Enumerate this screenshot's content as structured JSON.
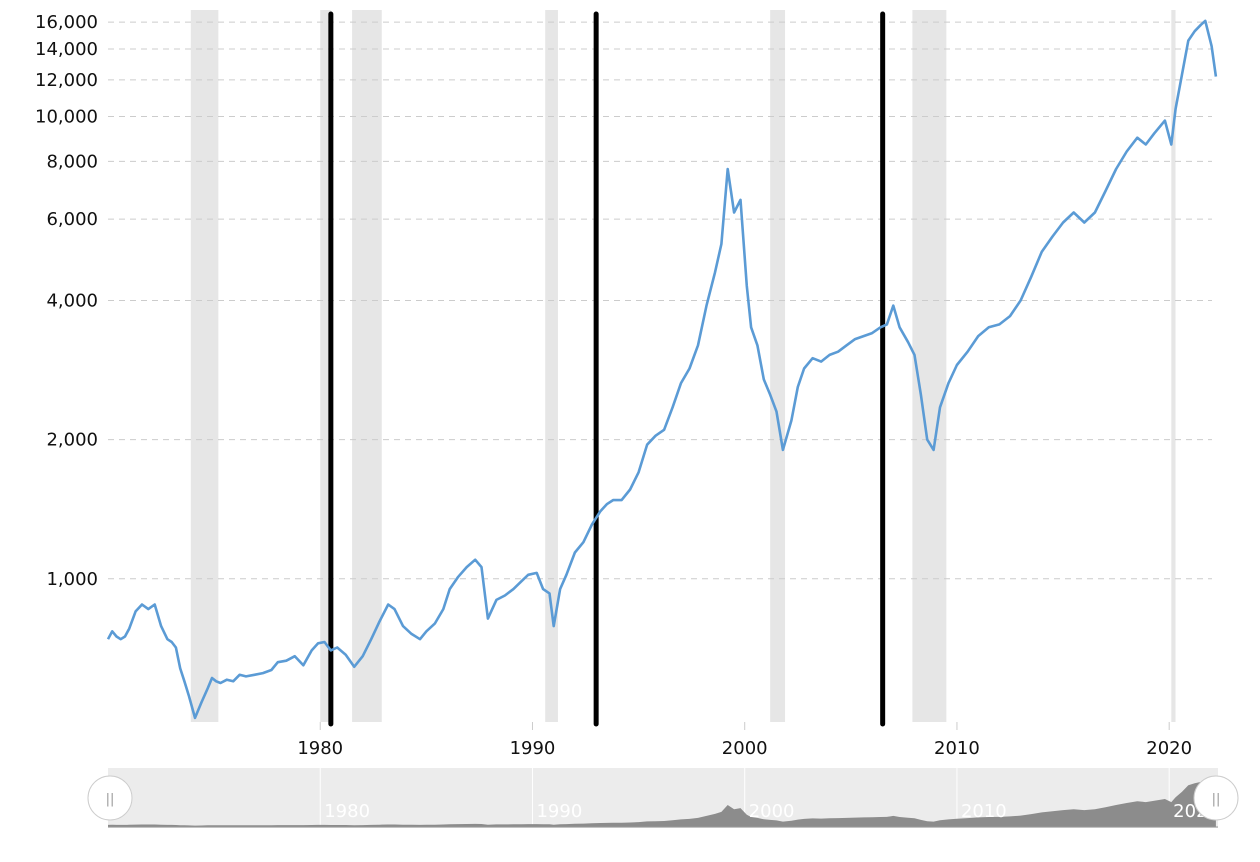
{
  "chart_data": {
    "type": "line",
    "y_scale": "log",
    "ylim": [
      490,
      17000
    ],
    "xlim": [
      1970.0,
      2022.3
    ],
    "grid": true,
    "y_ticks": [
      {
        "value": 1000,
        "label": "1,000"
      },
      {
        "value": 2000,
        "label": "2,000"
      },
      {
        "value": 4000,
        "label": "4,000"
      },
      {
        "value": 6000,
        "label": "6,000"
      },
      {
        "value": 8000,
        "label": "8,000"
      },
      {
        "value": 10000,
        "label": "10,000"
      },
      {
        "value": 12000,
        "label": "12,000"
      },
      {
        "value": 14000,
        "label": "14,000"
      },
      {
        "value": 16000,
        "label": "16,000"
      }
    ],
    "x_ticks": [
      {
        "value": 1980,
        "label": "1980"
      },
      {
        "value": 1990,
        "label": "1990"
      },
      {
        "value": 2000,
        "label": "2000"
      },
      {
        "value": 2010,
        "label": "2010"
      },
      {
        "value": 2020,
        "label": "2020"
      }
    ],
    "recessions": [
      [
        1973.9,
        1975.2
      ],
      [
        1980.0,
        1980.5
      ],
      [
        1981.5,
        1982.9
      ],
      [
        1990.6,
        1991.2
      ],
      [
        2001.2,
        2001.9
      ],
      [
        2007.9,
        2009.5
      ],
      [
        2020.1,
        2020.3
      ]
    ],
    "vertical_markers": [
      1980.5,
      1993.0,
      2006.5
    ],
    "series": [
      {
        "color": "#5b9bd5",
        "x": [
          1970.0,
          1970.2,
          1970.4,
          1970.6,
          1970.8,
          1971.0,
          1971.3,
          1971.6,
          1971.9,
          1972.2,
          1972.5,
          1972.8,
          1973.0,
          1973.2,
          1973.4,
          1973.6,
          1973.8,
          1974.1,
          1974.4,
          1974.7,
          1974.9,
          1975.1,
          1975.3,
          1975.6,
          1975.9,
          1976.2,
          1976.5,
          1976.9,
          1977.3,
          1977.7,
          1978.0,
          1978.4,
          1978.8,
          1979.2,
          1979.6,
          1979.9,
          1980.2,
          1980.5,
          1980.8,
          1981.2,
          1981.6,
          1982.0,
          1982.4,
          1982.8,
          1983.2,
          1983.5,
          1983.9,
          1984.3,
          1984.7,
          1985.0,
          1985.4,
          1985.8,
          1986.1,
          1986.5,
          1986.9,
          1987.3,
          1987.6,
          1987.9,
          1988.3,
          1988.7,
          1989.1,
          1989.5,
          1989.8,
          1990.2,
          1990.5,
          1990.8,
          1991.0,
          1991.3,
          1991.6,
          1992.0,
          1992.4,
          1992.8,
          1993.2,
          1993.5,
          1993.8,
          1994.2,
          1994.6,
          1995.0,
          1995.4,
          1995.8,
          1996.2,
          1996.6,
          1997.0,
          1997.4,
          1997.8,
          1998.2,
          1998.6,
          1998.9,
          1999.2,
          1999.5,
          1999.8,
          2000.1,
          2000.3,
          2000.6,
          2000.9,
          2001.2,
          2001.5,
          2001.8,
          2002.2,
          2002.5,
          2002.8,
          2003.2,
          2003.6,
          2004.0,
          2004.4,
          2004.8,
          2005.2,
          2005.6,
          2006.0,
          2006.4,
          2006.7,
          2007.0,
          2007.3,
          2007.7,
          2008.0,
          2008.3,
          2008.6,
          2008.9,
          2009.2,
          2009.6,
          2010.0,
          2010.5,
          2011.0,
          2011.5,
          2012.0,
          2012.5,
          2013.0,
          2013.5,
          2014.0,
          2014.5,
          2015.0,
          2015.5,
          2016.0,
          2016.5,
          2017.0,
          2017.5,
          2018.0,
          2018.5,
          2018.9,
          2019.3,
          2019.8,
          2020.1,
          2020.3,
          2020.6,
          2020.9,
          2021.2,
          2021.5,
          2021.7,
          2022.0,
          2022.2
        ],
        "values": [
          740,
          770,
          750,
          740,
          750,
          780,
          850,
          880,
          860,
          880,
          790,
          740,
          730,
          710,
          640,
          600,
          560,
          500,
          540,
          580,
          610,
          600,
          595,
          605,
          600,
          620,
          615,
          620,
          625,
          635,
          660,
          665,
          680,
          650,
          700,
          725,
          730,
          700,
          710,
          685,
          645,
          680,
          740,
          810,
          880,
          860,
          790,
          760,
          740,
          770,
          800,
          860,
          950,
          1010,
          1060,
          1100,
          1060,
          820,
          900,
          920,
          950,
          990,
          1020,
          1030,
          950,
          930,
          790,
          950,
          1020,
          1140,
          1200,
          1310,
          1400,
          1450,
          1480,
          1480,
          1560,
          1700,
          1950,
          2040,
          2100,
          2350,
          2650,
          2850,
          3200,
          3900,
          4600,
          5300,
          7700,
          6200,
          6600,
          4300,
          3500,
          3200,
          2700,
          2500,
          2300,
          1900,
          2200,
          2600,
          2850,
          3000,
          2950,
          3050,
          3100,
          3200,
          3300,
          3350,
          3400,
          3500,
          3550,
          3900,
          3500,
          3250,
          3050,
          2500,
          2000,
          1900,
          2350,
          2650,
          2900,
          3100,
          3350,
          3500,
          3550,
          3700,
          4000,
          4500,
          5100,
          5500,
          5900,
          6200,
          5900,
          6200,
          6900,
          7700,
          8400,
          9000,
          8700,
          9200,
          9800,
          8700,
          10400,
          12300,
          14600,
          15300,
          15800,
          16100,
          14200,
          12200
        ]
      }
    ]
  }
}
